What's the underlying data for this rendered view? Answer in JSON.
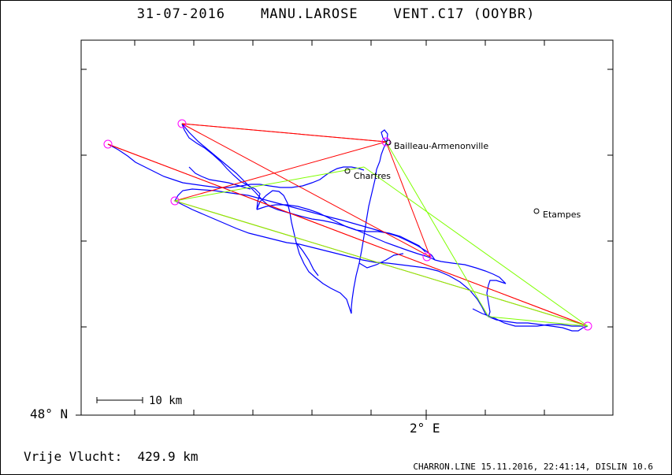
{
  "header": {
    "date": "31-07-2016",
    "pilot": "MANU.LAROSE",
    "glider": "VENT.C17 (OOYBR)"
  },
  "axes": {
    "lat_label": "48° N",
    "lon_label": "2° E"
  },
  "scale_bar": {
    "label": "10 km"
  },
  "places": [
    {
      "name": "Bailleau-Armenonville"
    },
    {
      "name": "Chartres"
    },
    {
      "name": "Etampes"
    }
  ],
  "footer": {
    "flight_label": "Vrije Vlucht:",
    "distance": "429.9 km",
    "credits": "CHARRON.LINE 15.11.2016, 22:41:14, DISLIN 10.6"
  },
  "colors": {
    "track": "#0000ff",
    "task_line": "#ff0000",
    "alt_line": "#7fff00",
    "turnpoint": "#ff00ff",
    "frame": "#000000"
  }
}
